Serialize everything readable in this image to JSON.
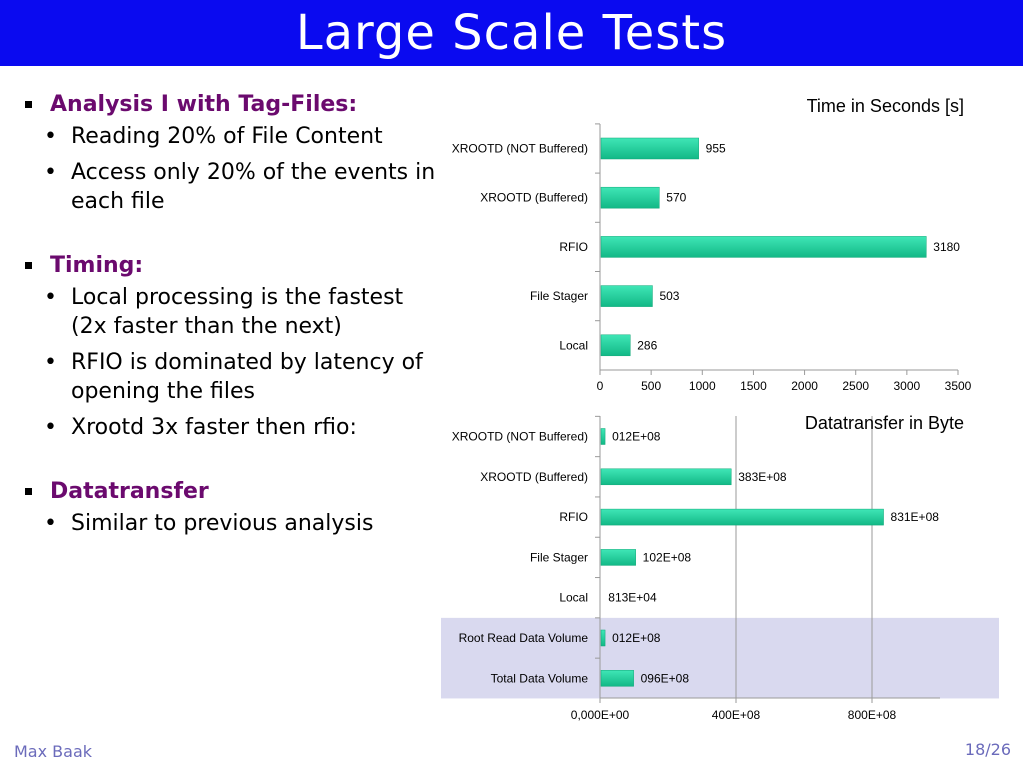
{
  "slide": {
    "title": "Large Scale Tests"
  },
  "bullets": [
    {
      "heading": "Analysis I with Tag-Files:",
      "items": [
        "Reading 20% of File Content",
        "Access only 20% of the events in each file"
      ]
    },
    {
      "heading": "Timing:",
      "items": [
        "Local processing is the fastest (2x faster than the next)",
        "RFIO is dominated by latency of opening the files",
        "Xrootd 3x faster then rfio:"
      ]
    },
    {
      "heading": "Datatransfer",
      "items": [
        "Similar to previous analysis"
      ]
    }
  ],
  "footer": {
    "author": "Max Baak",
    "page": "18/26"
  },
  "colors": {
    "title_bg": "#0a0af0",
    "heading": "#6b0a6e",
    "bar": "#1fd9a0",
    "highlight": "#d9d9ef"
  },
  "chart_data": [
    {
      "type": "bar",
      "orientation": "horizontal",
      "title": "Time in Seconds [s]",
      "categories": [
        "XROOTD (NOT Buffered)",
        "XROOTD (Buffered)",
        "RFIO",
        "File Stager",
        "Local"
      ],
      "values": [
        955,
        570,
        3180,
        503,
        286
      ],
      "data_labels": [
        "955",
        "570",
        "3180",
        "503",
        "286"
      ],
      "xlim": [
        0,
        3500
      ],
      "xticks": [
        0,
        500,
        1000,
        1500,
        2000,
        2500,
        3000,
        3500
      ],
      "xtick_labels": [
        "0",
        "500",
        "1000",
        "1500",
        "2000",
        "2500",
        "3000",
        "3500"
      ],
      "grid": false
    },
    {
      "type": "bar",
      "orientation": "horizontal",
      "title": "Datatransfer in Byte",
      "categories": [
        "XROOTD (NOT Buffered)",
        "XROOTD (Buffered)",
        "RFIO",
        "File Stager",
        "Local",
        "Root Read Data Volume",
        "Total Data Volume"
      ],
      "values": [
        120000000.0,
        3830000000.0,
        8310000000.0,
        1020000000.0,
        8130000.0,
        120000000.0,
        960000000.0
      ],
      "data_labels": [
        "012E+08",
        "383E+08",
        "831E+08",
        "102E+08",
        "813E+04",
        "012E+08",
        "096E+08"
      ],
      "highlighted_categories": [
        "Root Read Data Volume",
        "Total Data Volume"
      ],
      "xlim": [
        0,
        10000000000.0
      ],
      "xticks": [
        0,
        4000000000.0,
        8000000000.0
      ],
      "xtick_labels": [
        "0,000E+00",
        "400E+08",
        "800E+08"
      ],
      "grid": true
    }
  ]
}
